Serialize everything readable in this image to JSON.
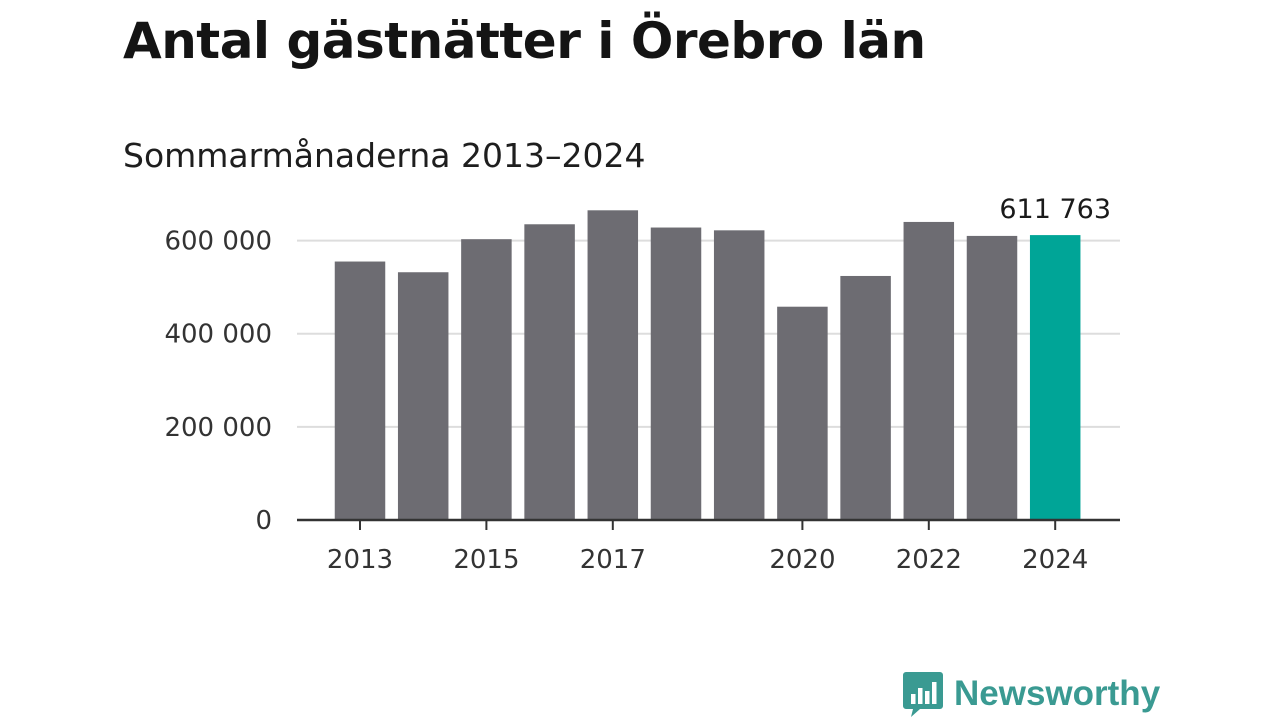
{
  "chart_data": {
    "type": "bar",
    "title": "Antal gästnätter i Örebro län",
    "subtitle": "Sommarmånaderna 2013–2024",
    "categories": [
      "2013",
      "2014",
      "2015",
      "2016",
      "2017",
      "2018",
      "2019",
      "2020",
      "2021",
      "2022",
      "2023",
      "2024"
    ],
    "values": [
      555000,
      532000,
      603000,
      635000,
      665000,
      628000,
      622000,
      458000,
      524000,
      640000,
      610000,
      611763
    ],
    "ylim": [
      0,
      700000
    ],
    "yticks": [
      0,
      200000,
      400000,
      600000
    ],
    "ytick_labels": [
      "0",
      "200 000",
      "400 000",
      "600 000"
    ],
    "xtick_labels": [
      "2013",
      "2015",
      "2017",
      "2020",
      "2022",
      "2024"
    ],
    "highlight_index": 11,
    "highlight_label": "611 763",
    "bar_color": "#6d6c72",
    "highlight_color": "#00a597",
    "grid": true
  },
  "branding": {
    "name": "Newsworthy",
    "icon": "newsworthy-logo-icon",
    "color": "#3a9a92"
  }
}
